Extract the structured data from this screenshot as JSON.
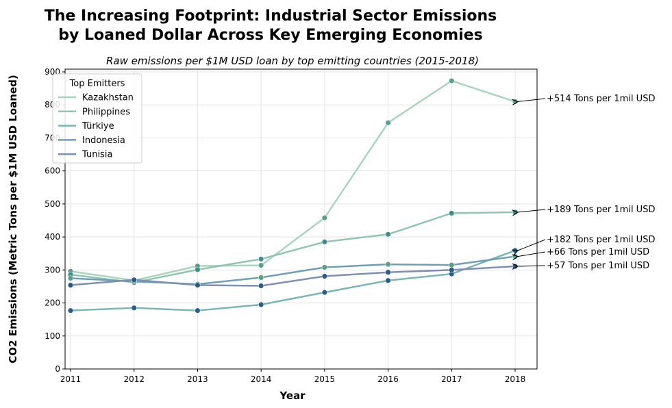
{
  "chart_data": {
    "type": "line",
    "title": "The Increasing Footprint: Industrial Sector Emissions\nby Loaned Dollar Across Key Emerging Economies",
    "subtitle": "Raw emissions per $1M USD loan by top emitting countries (2015-2018)",
    "xlabel": "Year",
    "ylabel": "CO2 Emissions (Metric Tons per $1M USD Loaned)",
    "x": [
      2011,
      2012,
      2013,
      2014,
      2015,
      2016,
      2017,
      2018
    ],
    "xlim": [
      2010.7,
      2018.35
    ],
    "ylim": [
      0,
      910
    ],
    "yticks": [
      0,
      100,
      200,
      300,
      400,
      500,
      600,
      700,
      800,
      900
    ],
    "grid": true,
    "legend_title": "Top Emitters",
    "legend_position": "top-left",
    "series": [
      {
        "name": "Kazakhstan",
        "values": [
          296,
          268,
          312,
          314,
          458,
          746,
          873,
          810
        ],
        "line_color": "#a9d5bf",
        "marker_color": "#5a9e8c",
        "annotation": "+514 Tons per 1mil USD"
      },
      {
        "name": "Philippines",
        "values": [
          286,
          262,
          301,
          333,
          385,
          408,
          472,
          475
        ],
        "line_color": "#8fc6b0",
        "marker_color": "#3f8d8d",
        "annotation": "+189 Tons per 1mil USD"
      },
      {
        "name": "Türkiye",
        "values": [
          177,
          185,
          177,
          195,
          232,
          268,
          288,
          359
        ],
        "line_color": "#7ab5b8",
        "marker_color": "#2a5e87",
        "annotation": "+182 Tons per 1mil USD"
      },
      {
        "name": "Indonesia",
        "values": [
          275,
          265,
          257,
          277,
          308,
          317,
          315,
          341
        ],
        "line_color": "#6f9fb5",
        "marker_color": "#5a9e86",
        "annotation": "+66 Tons per 1mil USD"
      },
      {
        "name": "Tunisia",
        "values": [
          254,
          270,
          254,
          252,
          281,
          293,
          300,
          311
        ],
        "line_color": "#7d90b3",
        "marker_color": "#295b86",
        "annotation": "+57 Tons per 1mil USD"
      }
    ]
  }
}
